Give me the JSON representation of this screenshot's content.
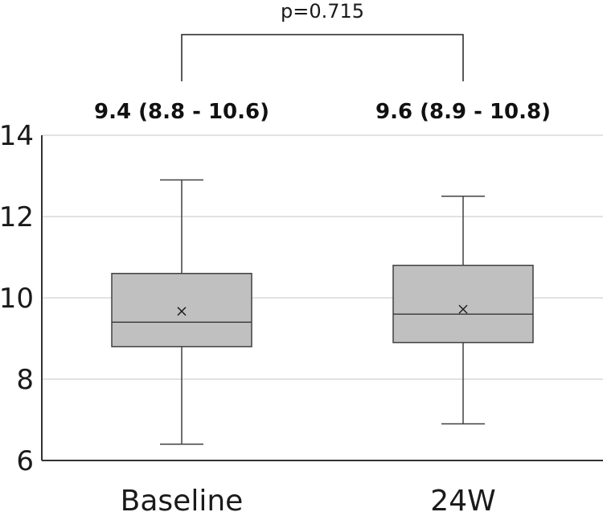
{
  "chart_data": {
    "type": "box",
    "categories": [
      "Baseline",
      "24W"
    ],
    "series": [
      {
        "category": "Baseline",
        "min": 6.4,
        "q1": 8.8,
        "median": 9.4,
        "q3": 10.6,
        "max": 12.9,
        "mean": 9.67,
        "summary_label": "9.4 (8.8 - 10.6)"
      },
      {
        "category": "24W",
        "min": 6.9,
        "q1": 8.9,
        "median": 9.6,
        "q3": 10.8,
        "max": 12.5,
        "mean": 9.72,
        "summary_label": "9.6 (8.9 - 10.8)"
      }
    ],
    "ylim": [
      6,
      14
    ],
    "yticks": [
      6,
      8,
      10,
      12,
      14
    ],
    "grid": true,
    "annotation": {
      "text": "p=0.715",
      "between": [
        "Baseline",
        "24W"
      ]
    },
    "colors": {
      "box_fill": "#c0c0c0",
      "box_stroke": "#404040",
      "grid": "#d9d9d9",
      "axis": "#333333"
    }
  }
}
